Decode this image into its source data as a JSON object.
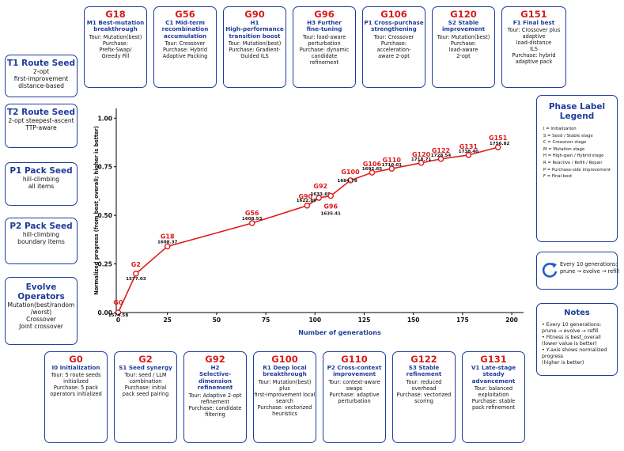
{
  "top_boxes": [
    {
      "gen": "G18",
      "subtitle": [
        "M1 Best-mutation",
        "breakthrough"
      ],
      "desc": [
        "Tour: Mutation(best)",
        "Purchase:",
        "Prefix-Swap/",
        "Greedy Fill"
      ]
    },
    {
      "gen": "G56",
      "subtitle": [
        "C1 Mid-term",
        "recombination",
        "accumulation"
      ],
      "desc": [
        "Tour: Crossover",
        "Purchase: Hybrid",
        "Adaptive Packing"
      ]
    },
    {
      "gen": "G90",
      "subtitle": [
        "H1",
        "High-performance",
        "transition boost"
      ],
      "desc": [
        "Tour: Mutation(best)",
        "Purchase: Gradient-",
        "Guided ILS"
      ]
    },
    {
      "gen": "G96",
      "subtitle": [
        "H3 Further",
        "fine-tuning"
      ],
      "desc": [
        "Tour: load-aware",
        "perturbation",
        "Purchase: dynamic",
        "candidate",
        "refinement"
      ]
    },
    {
      "gen": "G106",
      "subtitle": [
        "P1 Cross-purchase",
        "strengthening"
      ],
      "desc": [
        "Tour: Crossover",
        "Purchase:",
        "acceleration-",
        "aware 2-opt"
      ]
    },
    {
      "gen": "G120",
      "subtitle": [
        "S2 Stable",
        "improvement"
      ],
      "desc": [
        "Tour: Mutation(best)",
        "Purchase:",
        "load-aware",
        "2-opt"
      ]
    },
    {
      "gen": "G151",
      "subtitle": [
        "F1 Final best"
      ],
      "desc": [
        "Tour: Crossover plus",
        "adaptive",
        "load-distance",
        "ILS",
        "Purchase: hybrid",
        "adaptive pack"
      ]
    }
  ],
  "bottom_boxes": [
    {
      "gen": "G0",
      "subtitle": [
        "I0 Initialization"
      ],
      "desc": [
        "Tour: 5 route seeds",
        "initialized",
        "Purchase: 5 pack",
        "operators initialized"
      ]
    },
    {
      "gen": "G2",
      "subtitle": [
        "S1 Seed synergy"
      ],
      "desc": [
        "Tour: seed / LLM",
        "combination",
        "Purchase: initial",
        "pack seed pairing"
      ]
    },
    {
      "gen": "G92",
      "subtitle": [
        "H2",
        "Selective-dimension",
        "refinement"
      ],
      "desc": [
        "Tour: Adaptive 2-opt",
        "refinement",
        "Purchase: candidate",
        "filtering"
      ]
    },
    {
      "gen": "G100",
      "subtitle": [
        "R1 Deep local",
        "breakthrough"
      ],
      "desc": [
        "Tour: Mutation(best) plus",
        "first-improvement local",
        "search",
        "Purchase: vectorized",
        "heuristics"
      ]
    },
    {
      "gen": "G110",
      "subtitle": [
        "P2 Cross-context",
        "improvement"
      ],
      "desc": [
        "Tour: context-aware",
        "swaps",
        "Purchase: adaptive",
        "perturbation"
      ]
    },
    {
      "gen": "G122",
      "subtitle": [
        "S3 Stable",
        "refinement"
      ],
      "desc": [
        "Tour: reduced overhead",
        "Purchase: vectorized",
        "scoring"
      ]
    },
    {
      "gen": "G131",
      "subtitle": [
        "V1 Late-stage",
        "steady advancement"
      ],
      "desc": [
        "Tour: balanced",
        "exploitation",
        "Purchase: stable",
        "pack refinement"
      ]
    }
  ],
  "seeds": [
    {
      "title": "T1 Route Seed",
      "desc": [
        "2-opt",
        "first-improvement",
        "distance-based"
      ]
    },
    {
      "title": "T2 Route Seed",
      "desc": [
        "2-opt steepest-ascent",
        "TTP-aware"
      ]
    },
    {
      "title": "P1 Pack Seed",
      "desc": [
        "hill-climbing",
        "all items"
      ]
    },
    {
      "title": "P2 Pack Seed",
      "desc": [
        "hill-climbing",
        "boundary items"
      ]
    },
    {
      "title": "Evolve Operators",
      "desc": [
        "Mutation(best/random",
        "/worst)",
        "Crossover",
        "Joint crossover"
      ]
    }
  ],
  "legend": {
    "title": "Phase Label Legend",
    "items": [
      "I = Initialization",
      "S = Seed / Stable stage",
      "C = Crossover stage",
      "M = Mutation stage",
      "H = High-gain / Hybrid stage",
      "R = Reactive / Refill / Repair",
      "P = Purchase-side improvement",
      "F = Final best"
    ]
  },
  "cycle": {
    "lines": [
      "Every 10 generations:",
      "prune → evolve → refill"
    ],
    "icon": "cycle-arrow-icon"
  },
  "notes": {
    "title": "Notes",
    "items": [
      "• Every 10 generations:",
      "prune → evolve → refill",
      "• Fitness is best_overall",
      "(lower value is better)",
      "• Y-axis shows normalized",
      "progress",
      "(higher is better)"
    ]
  },
  "colors": {
    "accent": "#1f3c99",
    "series": "#e01b1b",
    "text": "#111111"
  },
  "chart_data": {
    "type": "line",
    "xlabel": "Number of generations",
    "ylabel": "Normalized progress (from best_overall; higher is better)",
    "xlim": [
      -1,
      206
    ],
    "ylim": [
      0,
      1.05
    ],
    "xticks": [
      0,
      25,
      50,
      75,
      100,
      125,
      150,
      175,
      200
    ],
    "yticks": [
      0.0,
      0.25,
      0.5,
      0.75,
      1.0
    ],
    "ytick_labels": [
      "0.00",
      "0.25",
      "0.50",
      "0.75",
      "1.00"
    ],
    "grid": false,
    "series": [
      {
        "points": [
          {
            "x": 0,
            "y": 0.0,
            "gen": "G0",
            "value": "1574.58"
          },
          {
            "x": 9,
            "y": 0.2,
            "gen": "G2",
            "value": "1577.03"
          },
          {
            "x": 25,
            "y": 0.34,
            "gen": "G18",
            "value": "1608.37"
          },
          {
            "x": 68,
            "y": 0.46,
            "gen": "G56",
            "value": "1608.53"
          },
          {
            "x": 96,
            "y": 0.55,
            "gen": "G90",
            "value": "1622.89"
          },
          {
            "x": 102,
            "y": 0.59,
            "gen": "G92",
            "value": "1633.69"
          },
          {
            "x": 108,
            "y": 0.6,
            "gen": "G96",
            "value": "1635.41"
          },
          {
            "x": 118,
            "y": 0.68,
            "gen": "G100",
            "value": "1684.78"
          },
          {
            "x": 129,
            "y": 0.72,
            "gen": "G106",
            "value": "1692.65"
          },
          {
            "x": 139,
            "y": 0.74,
            "gen": "G110",
            "value": "1710.01"
          },
          {
            "x": 154,
            "y": 0.77,
            "gen": "G120",
            "value": "1718.71"
          },
          {
            "x": 164,
            "y": 0.79,
            "gen": "G122",
            "value": "1728.54"
          },
          {
            "x": 178,
            "y": 0.81,
            "gen": "G131",
            "value": "1738.40"
          },
          {
            "x": 193,
            "y": 0.85,
            "gen": "G151",
            "value": "1756.82"
          }
        ]
      }
    ]
  }
}
